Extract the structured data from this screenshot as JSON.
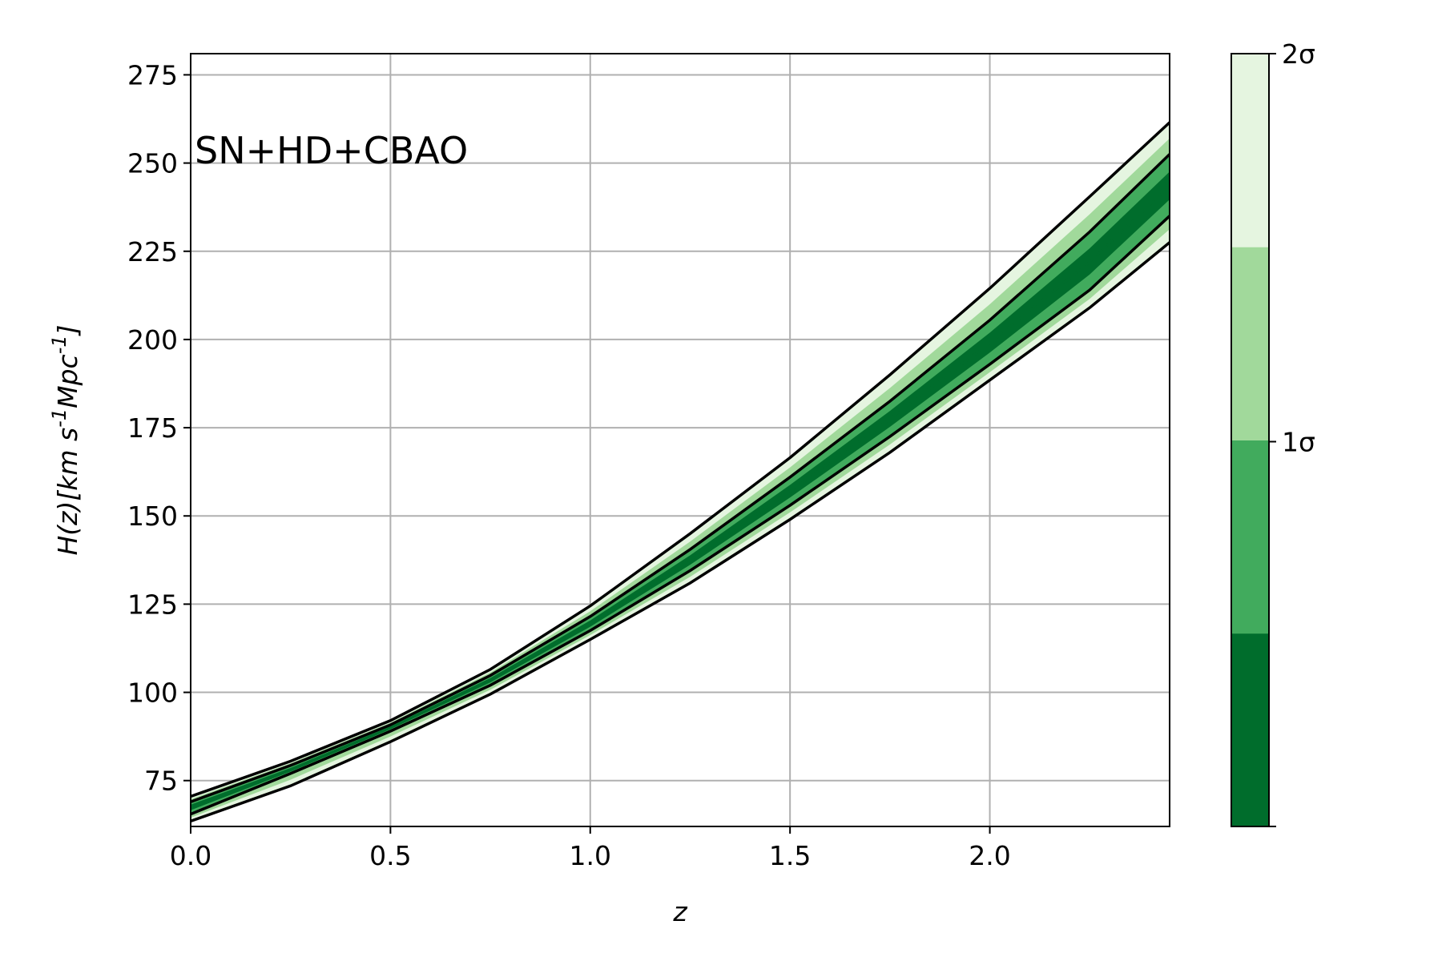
{
  "chart_data": {
    "type": "area",
    "annotation": "SN+HD+CBAO",
    "xlabel": "z",
    "ylabel": "H(z)[km s^{-1}Mpc^{-1}]",
    "xlim": [
      0.0,
      2.45
    ],
    "ylim": [
      62,
      281
    ],
    "xticks": [
      0.0,
      0.5,
      1.0,
      1.5,
      2.0
    ],
    "xtick_labels": [
      "0.0",
      "0.5",
      "1.0",
      "1.5",
      "2.0"
    ],
    "yticks": [
      75,
      100,
      125,
      150,
      175,
      200,
      225,
      250,
      275
    ],
    "ytick_labels": [
      "75",
      "100",
      "125",
      "150",
      "175",
      "200",
      "225",
      "250",
      "275"
    ],
    "grid": true,
    "x": [
      0.0,
      0.25,
      0.5,
      0.75,
      1.0,
      1.25,
      1.5,
      1.75,
      2.0,
      2.25,
      2.45
    ],
    "series": [
      {
        "upper": [
          70.5,
          80.5,
          92.0,
          106.5,
          124.5,
          145.0,
          166.5,
          190.0,
          214.5,
          240.5,
          261.5
        ]
      },
      {
        "upper": [
          69.0,
          79.3,
          90.8,
          104.8,
          121.5,
          140.5,
          161.0,
          182.5,
          205.5,
          230.5,
          252.5
        ]
      },
      {
        "lower": [
          65.5,
          77.0,
          89.0,
          102.0,
          117.5,
          134.5,
          153.0,
          172.5,
          193.0,
          214.0,
          235.0
        ]
      },
      {
        "lower": [
          63.5,
          73.5,
          86.0,
          99.5,
          115.0,
          131.0,
          149.0,
          168.0,
          188.5,
          209.0,
          227.5
        ]
      }
    ],
    "central": [
      67.5,
      78.0,
      90.0,
      103.5,
      119.5,
      137.5,
      157.0,
      177.5,
      199.0,
      222.0,
      243.5
    ],
    "colorbar": {
      "tick_labels": [
        "1σ",
        "2σ"
      ],
      "colors": [
        "#006d2c",
        "#41ab5d",
        "#a1d99b",
        "#e5f5e0"
      ]
    },
    "colors": {
      "band_outer": "#e5f5e0",
      "band_mid_light": "#a1d99b",
      "band_mid": "#41ab5d",
      "band_inner": "#006d2c",
      "grid": "#b0b0b0",
      "contour": "#000000"
    }
  }
}
